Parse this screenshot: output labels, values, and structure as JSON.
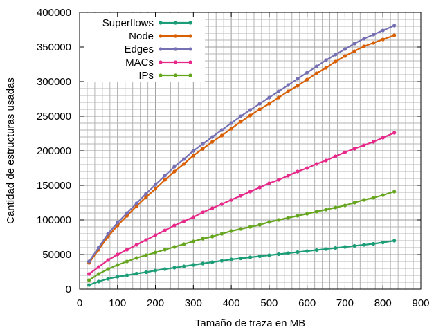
{
  "chart_data": {
    "type": "line",
    "title": "",
    "xlabel": "Tamaño de traza en MB",
    "ylabel": "Cantidad de estructuras usadas",
    "xlim": [
      0,
      900
    ],
    "ylim": [
      0,
      400000
    ],
    "x_ticks": [
      0,
      100,
      200,
      300,
      400,
      500,
      600,
      700,
      800,
      900
    ],
    "y_ticks": [
      0,
      50000,
      100000,
      150000,
      200000,
      250000,
      300000,
      350000,
      400000
    ],
    "x_tick_labels": [
      "0",
      "100",
      "200",
      "300",
      "400",
      "500",
      "600",
      "700",
      "800",
      "900"
    ],
    "y_tick_labels": [
      "0",
      "50000",
      "100000",
      "150000",
      "200000",
      "250000",
      "300000",
      "350000",
      "400000"
    ],
    "grid": true,
    "minor_grid": true,
    "legend_position": "top-left",
    "x": [
      25,
      50,
      75,
      100,
      125,
      150,
      175,
      200,
      225,
      250,
      275,
      300,
      325,
      350,
      375,
      400,
      425,
      450,
      475,
      500,
      525,
      550,
      575,
      600,
      625,
      650,
      675,
      700,
      725,
      750,
      775,
      800,
      830
    ],
    "series": [
      {
        "name": "Superflows",
        "color": "#1b9e77",
        "values": [
          6000,
          11000,
          15000,
          18000,
          20000,
          22500,
          24500,
          27000,
          29000,
          31000,
          33000,
          35000,
          37000,
          39000,
          41000,
          43000,
          44500,
          46000,
          47500,
          49000,
          50500,
          52000,
          53500,
          55000,
          56500,
          58000,
          59500,
          61000,
          62500,
          64000,
          65500,
          67500,
          70000
        ]
      },
      {
        "name": "Node",
        "color": "#d95f02",
        "values": [
          38000,
          57000,
          76000,
          92000,
          106000,
          120000,
          133000,
          145000,
          158000,
          170000,
          181000,
          193000,
          203000,
          213000,
          222000,
          232000,
          242000,
          251000,
          260000,
          268000,
          277000,
          286000,
          294000,
          303000,
          312000,
          320000,
          329000,
          337000,
          344000,
          351000,
          356000,
          361000,
          367000
        ]
      },
      {
        "name": "Edges",
        "color": "#7570b3",
        "values": [
          40000,
          60000,
          80000,
          96000,
          110000,
          124000,
          138000,
          151000,
          164000,
          177000,
          188000,
          200000,
          210000,
          220000,
          230000,
          240000,
          250000,
          259000,
          268000,
          277000,
          286000,
          295000,
          304000,
          313000,
          322000,
          331000,
          339000,
          347000,
          355000,
          362000,
          368000,
          374000,
          381000
        ]
      },
      {
        "name": "MACs",
        "color": "#e7298a",
        "values": [
          22000,
          32000,
          42000,
          50000,
          57000,
          64000,
          71000,
          78000,
          85000,
          92000,
          98000,
          104000,
          111000,
          117000,
          123000,
          129000,
          135000,
          141000,
          147000,
          153000,
          158000,
          164000,
          170000,
          175000,
          181000,
          186000,
          192000,
          198000,
          203000,
          208000,
          213000,
          219000,
          226000
        ]
      },
      {
        "name": "IPs",
        "color": "#66a61e",
        "values": [
          13000,
          22000,
          29000,
          35000,
          40000,
          45000,
          49000,
          53000,
          57000,
          61000,
          65000,
          69000,
          73000,
          76000,
          80000,
          84000,
          87000,
          90000,
          93000,
          97000,
          100000,
          103000,
          106000,
          109000,
          112000,
          115000,
          118000,
          121000,
          125000,
          129000,
          132000,
          136000,
          141000
        ]
      }
    ]
  }
}
